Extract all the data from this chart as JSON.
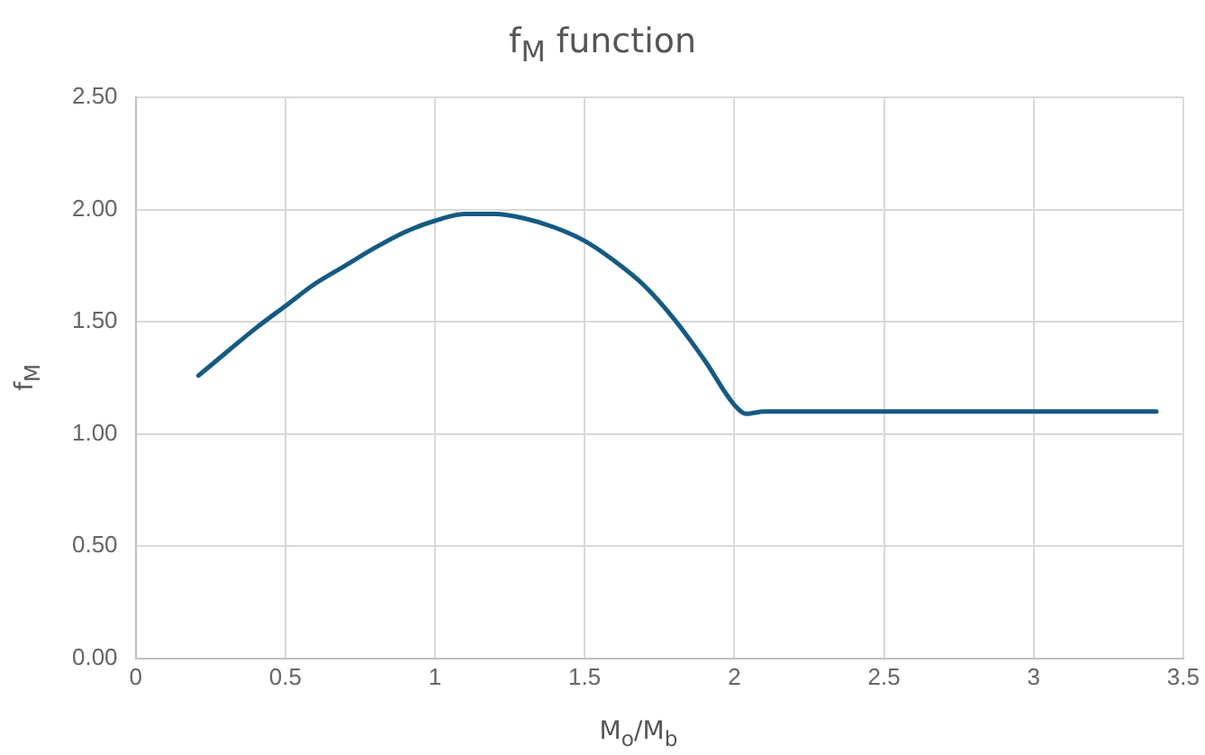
{
  "chart_data": {
    "type": "line",
    "title": "f$_{M}$ function",
    "xlabel": "M$_{o}$/M$_{b}$",
    "ylabel": "f$_{M}$",
    "x": [
      0.21,
      0.3,
      0.4,
      0.5,
      0.6,
      0.7,
      0.8,
      0.9,
      1.0,
      1.1,
      1.2,
      1.3,
      1.4,
      1.5,
      1.6,
      1.7,
      1.8,
      1.9,
      2.0,
      2.04,
      2.1,
      3.41
    ],
    "series": [
      {
        "color": "#155a82",
        "values": [
          1.26,
          1.36,
          1.47,
          1.57,
          1.67,
          1.75,
          1.83,
          1.9,
          1.95,
          1.98,
          1.98,
          1.96,
          1.92,
          1.86,
          1.77,
          1.66,
          1.51,
          1.33,
          1.13,
          1.09,
          1.1,
          1.1
        ]
      }
    ],
    "xlim": [
      0,
      3.5
    ],
    "xticks": [
      0,
      0.5,
      1,
      1.5,
      2,
      2.5,
      3,
      3.5
    ],
    "ylim": [
      0,
      2.5
    ],
    "yticks": [
      {
        "value": 0,
        "label": "0.00"
      },
      {
        "value": 0.5,
        "label": "0.50"
      },
      {
        "value": 1,
        "label": "1.00"
      },
      {
        "value": 1.5,
        "label": "1.50"
      },
      {
        "value": 2,
        "label": "2.00"
      },
      {
        "value": 2.5,
        "label": "2.50"
      }
    ],
    "grid": true,
    "legend": false,
    "marker": "none",
    "line_style": "solid"
  }
}
